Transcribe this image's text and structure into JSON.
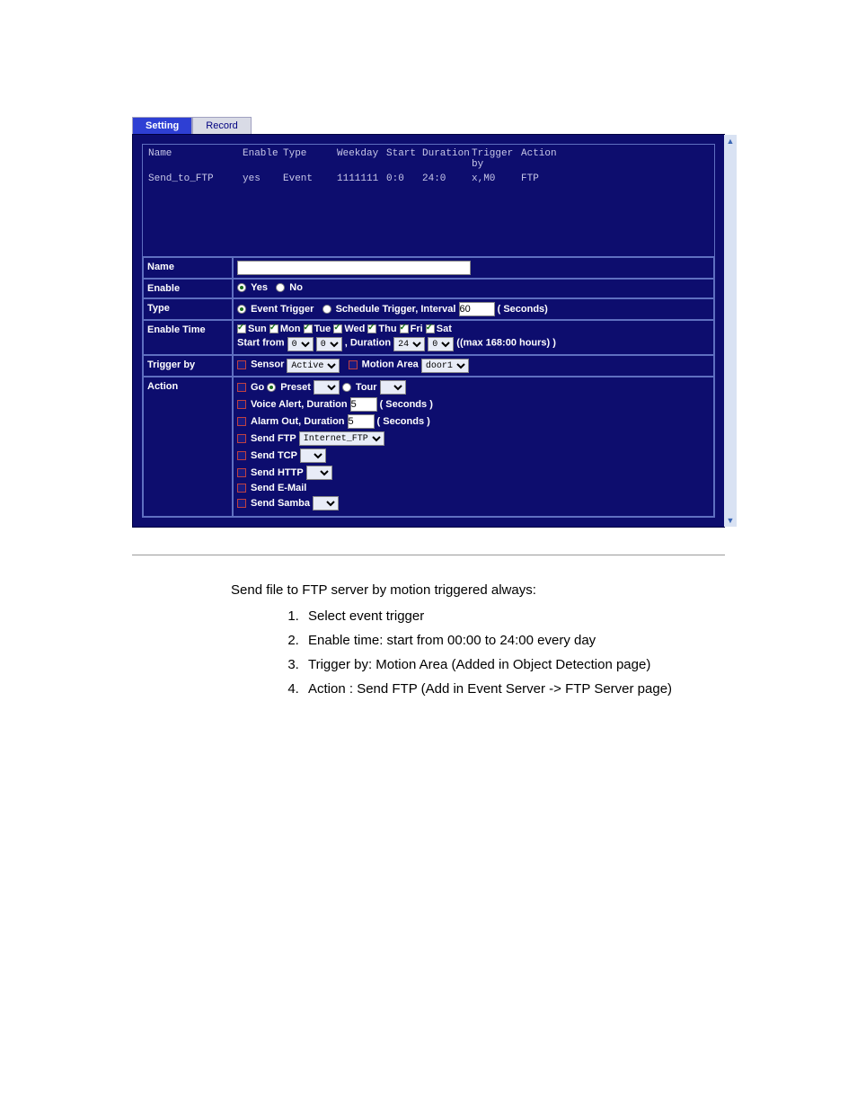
{
  "tabs": {
    "setting": "Setting",
    "record": "Record"
  },
  "table": {
    "headers": {
      "name": "Name",
      "enable": "Enable",
      "type": "Type",
      "weekday": "Weekday",
      "start": "Start",
      "duration": "Duration",
      "trigger": "Trigger by",
      "action": "Action"
    },
    "row": {
      "name": "Send_to_FTP",
      "enable": "yes",
      "type": "Event",
      "weekday": "1111111",
      "start": "0:0",
      "duration": "24:0",
      "trigger": "x,M0",
      "action": "FTP"
    }
  },
  "form": {
    "labels": {
      "name": "Name",
      "enable": "Enable",
      "type": "Type",
      "enable_time": "Enable Time",
      "trigger_by": "Trigger by",
      "action": "Action"
    },
    "enable": {
      "yes": "Yes",
      "no": "No",
      "sel": "yes"
    },
    "type": {
      "event": "Event Trigger",
      "schedule": "Schedule Trigger, Interval",
      "interval_val": "60",
      "seconds": "( Seconds)",
      "sel": "event"
    },
    "enable_time": {
      "days": [
        "Sun",
        "Mon",
        "Tue",
        "Wed",
        "Thu",
        "Fri",
        "Sat"
      ],
      "start_from": "Start from",
      "duration": ", Duration",
      "hh1": "0",
      "mm1": "0",
      "hh2": "24",
      "mm2": "0",
      "max": "((max 168:00 hours) )"
    },
    "trigger": {
      "sensor": "Sensor",
      "sensor_val": "Active",
      "motion": "Motion Area",
      "motion_val": "door1"
    },
    "action": {
      "go": "Go",
      "preset": "Preset",
      "tour": "Tour",
      "voice": "Voice Alert, Duration",
      "voice_val": "5",
      "seconds": "( Seconds )",
      "alarm": "Alarm Out, Duration",
      "alarm_val": "5",
      "sendftp": "Send FTP",
      "sendftp_val": "Internet_FTP",
      "sendtcp": "Send TCP",
      "sendhttp": "Send HTTP",
      "sendemail": "Send E-Mail",
      "sendsamba": "Send Samba"
    }
  },
  "doc": {
    "title": "Send file to FTP server by motion triggered always:",
    "items": [
      "Select event trigger",
      "Enable time: start from 00:00 to 24:00 every day",
      "Trigger by: Motion Area (Added in Object Detection page)",
      "Action : Send FTP (Add in Event Server -> FTP Server page)"
    ]
  },
  "colors": {
    "panel_bg": "#0d0d6e",
    "tab_active": "#2e3fd4"
  }
}
